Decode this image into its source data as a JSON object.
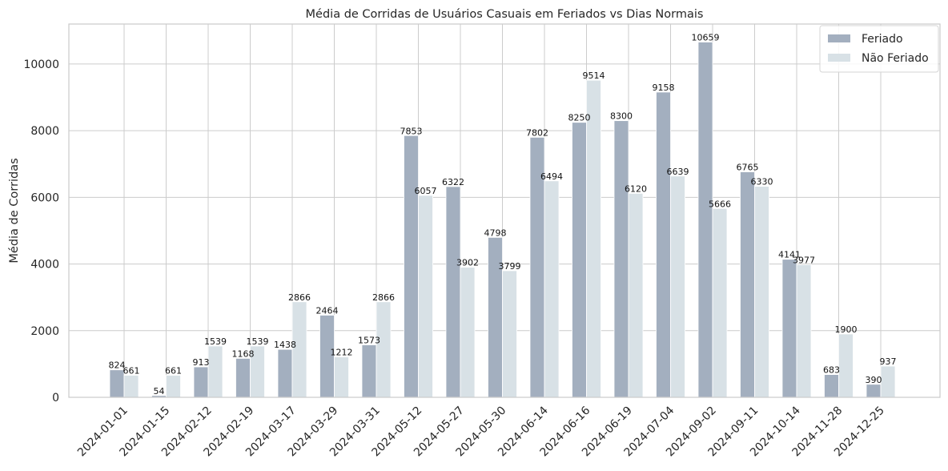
{
  "chart_data": {
    "type": "bar",
    "title": "Média de Corridas de Usuários Casuais em Feriados vs Dias Normais",
    "xlabel": "",
    "ylabel": "Média de Corridas",
    "ylim": [
      0,
      11200
    ],
    "yticks": [
      0,
      2000,
      4000,
      6000,
      8000,
      10000
    ],
    "grid": true,
    "legend_position": "top-right",
    "categories": [
      "2024-01-01",
      "2024-01-15",
      "2024-02-12",
      "2024-02-19",
      "2024-03-17",
      "2024-03-29",
      "2024-03-31",
      "2024-05-12",
      "2024-05-27",
      "2024-05-30",
      "2024-06-14",
      "2024-06-16",
      "2024-06-19",
      "2024-07-04",
      "2024-09-02",
      "2024-09-11",
      "2024-10-14",
      "2024-11-28",
      "2024-12-25"
    ],
    "series": [
      {
        "name": "Feriado",
        "color": "#a3afbf",
        "values": [
          824,
          54,
          913,
          1168,
          1438,
          2464,
          1573,
          7853,
          6322,
          4798,
          7802,
          8250,
          8300,
          9158,
          10659,
          6765,
          4141,
          683,
          390
        ]
      },
      {
        "name": "Não Feriado",
        "color": "#d8e1e6",
        "values": [
          661,
          661,
          1539,
          1539,
          2866,
          1212,
          2866,
          6057,
          3902,
          3799,
          6494,
          9514,
          6120,
          6639,
          5666,
          6330,
          3977,
          1900,
          937
        ]
      }
    ]
  }
}
